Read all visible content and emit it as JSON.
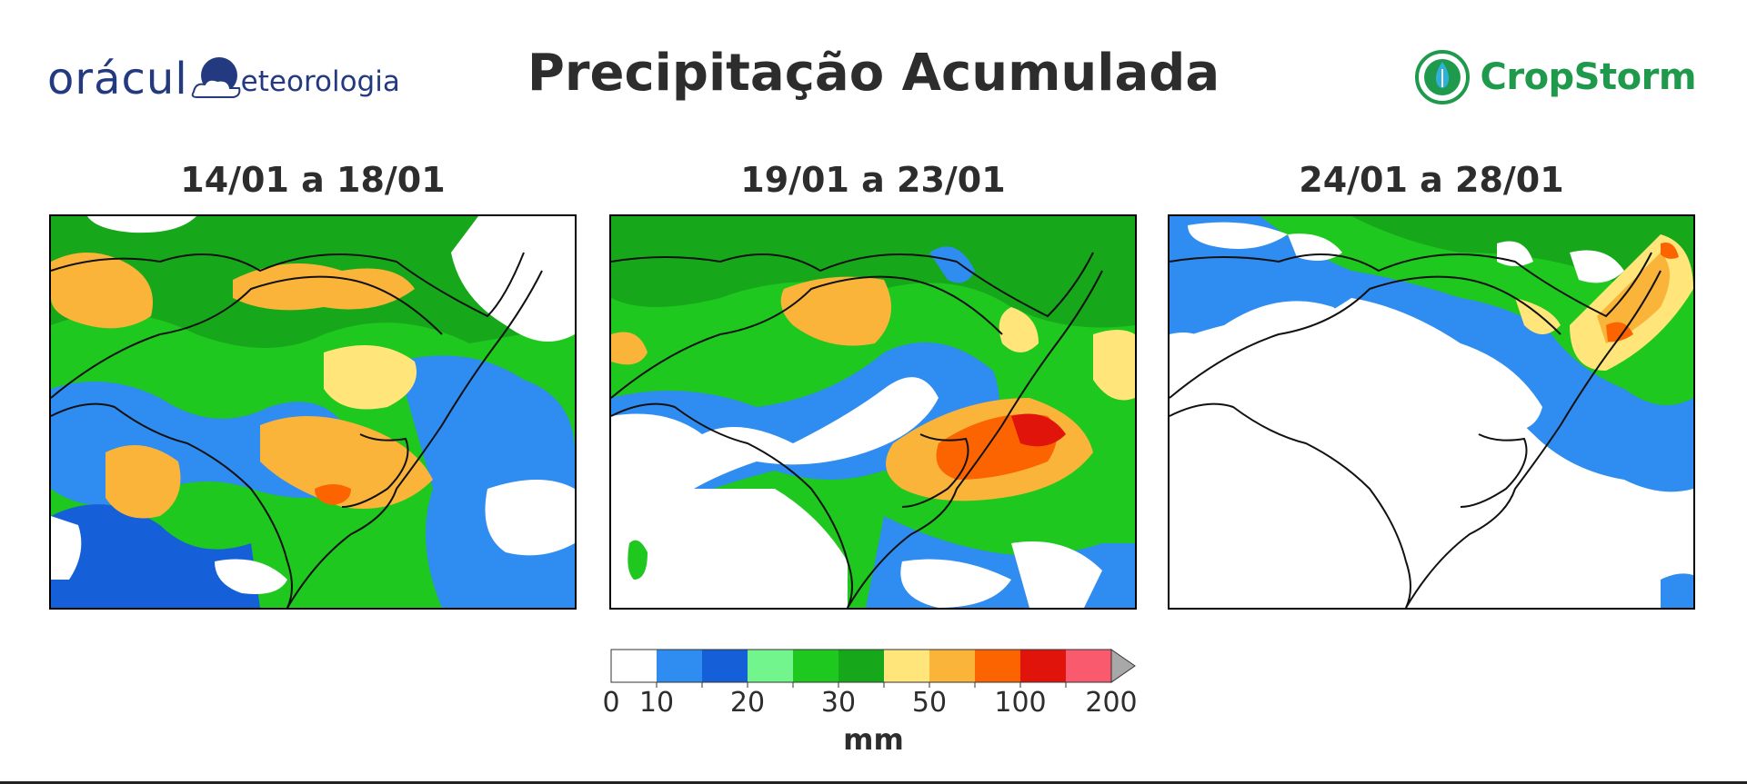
{
  "header": {
    "title": "Precipitação Acumulada",
    "logo_left_text_1": "orácul",
    "logo_left_text_2": "eteorologia",
    "logo_right_text": "CropStorm",
    "logo_left_color": "#243a80",
    "logo_right_color": "#1f9a4c"
  },
  "panels": [
    {
      "title": "14/01 a 18/01"
    },
    {
      "title": "19/01 a 23/01"
    },
    {
      "title": "24/01 a 28/01"
    }
  ],
  "colorbar": {
    "unit": "mm",
    "tick_labels": [
      "0",
      "10",
      "20",
      "30",
      "50",
      "100",
      "200"
    ],
    "colors": [
      "#ffffff",
      "#2f8cf0",
      "#1560d8",
      "#72f58c",
      "#1ec81e",
      "#16a81a",
      "#ffe57a",
      "#fbb43a",
      "#fb6400",
      "#e0140a",
      "#fa5a6e"
    ],
    "extend_color": "#a8a8a8"
  }
}
